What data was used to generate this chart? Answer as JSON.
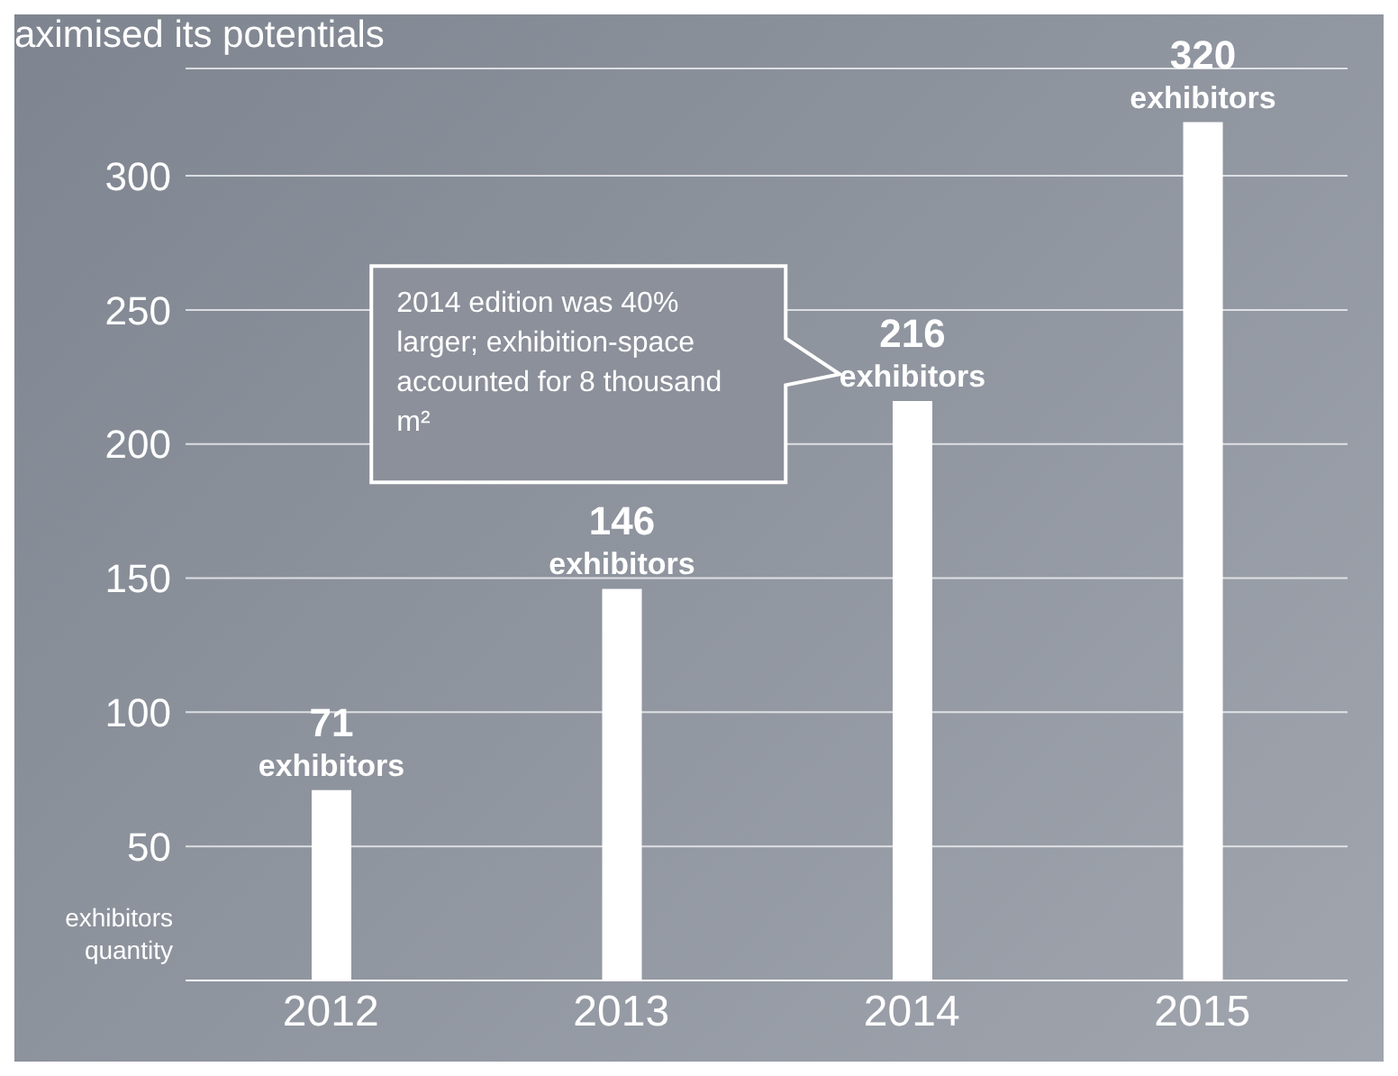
{
  "chart_data": {
    "type": "bar",
    "title": "aximised its potentials",
    "ylabel": "exhibitors quantity",
    "categories": [
      "2012",
      "2013",
      "2014",
      "2015"
    ],
    "values": [
      71,
      146,
      216,
      320
    ],
    "value_labels": [
      "71 exhibitors",
      "146 exhibitors",
      "216 exhibitors",
      "320 exhibitors"
    ],
    "color": "#ffffff",
    "ylim": [
      0,
      340
    ],
    "yticks": [
      50,
      100,
      150,
      200,
      250,
      300
    ],
    "grid": "y",
    "legend": false,
    "annotations": [
      "2014 edition was 40% larger; exhibition-space accounted for 8 thousand m²"
    ]
  }
}
